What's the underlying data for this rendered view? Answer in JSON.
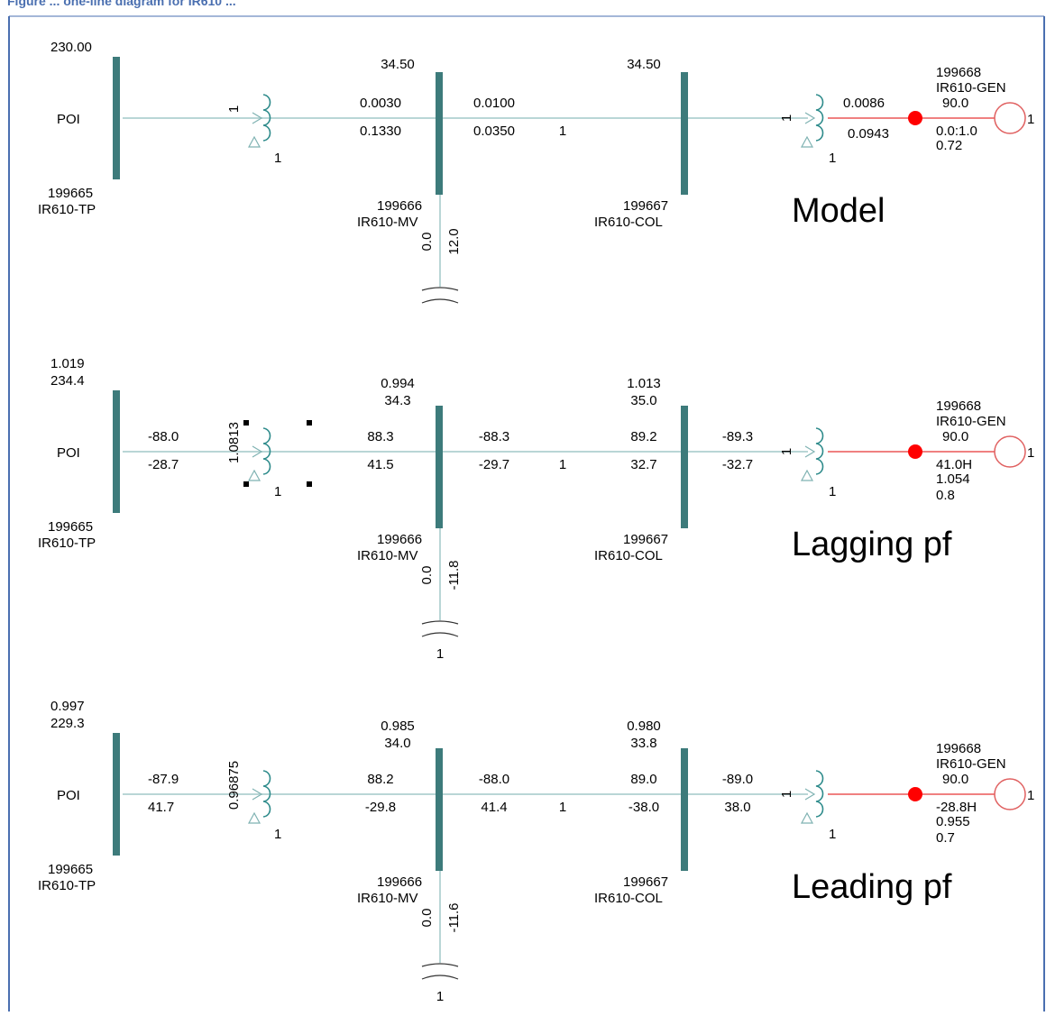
{
  "colors": {
    "bus": "#3d7b7b",
    "line": "#b9d6d6",
    "winding": "#2e8b8b",
    "delta": "#7fb2b2",
    "gen_line": "#f08080",
    "gen_dot": "#ff0000",
    "gen_circle": "#e06060",
    "text": "#000000",
    "border": "#4a6fb0"
  },
  "header_fragment": "Figure ... one-line diagram for IR610 ...",
  "panels": [
    {
      "id": "model",
      "title": "Model",
      "poi": {
        "v1": "",
        "v2": "230.00",
        "name": "POI",
        "num": "199665",
        "bus": "IR610-TP"
      },
      "xf1": {
        "label": "1",
        "label_rotated": true,
        "sec": "1"
      },
      "xf1_flow_left": {
        "top": "",
        "bot": ""
      },
      "xf1_flow_right": {
        "top": "0.0030",
        "bot": "0.1330"
      },
      "mv": {
        "v1": "",
        "v2": "34.50",
        "num": "199666",
        "bus": "IR610-MV"
      },
      "mv_flow": {
        "top": "0.0100",
        "bot": "0.0350"
      },
      "ckt": "1",
      "col": {
        "v1": "",
        "v2": "34.50",
        "num": "199667",
        "bus": "IR610-COL"
      },
      "col_flow_left": {
        "top": "",
        "bot": ""
      },
      "xf2": {
        "label": "1",
        "top": "0.0086",
        "bot": "0.0943",
        "sec": "1"
      },
      "gen": {
        "num": "199668",
        "name": "IR610-GEN",
        "p": "90.0",
        "q": "0.0:1.0",
        "v": "0.72",
        "extra": "",
        "id": "1"
      },
      "shunt": {
        "a": "0.0",
        "b": "12.0",
        "id": ""
      }
    },
    {
      "id": "lagging",
      "title": "Lagging pf",
      "poi": {
        "v1": "1.019",
        "v2": "234.4",
        "name": "POI",
        "num": "199665",
        "bus": "IR610-TP"
      },
      "xf1": {
        "label": "1.0813",
        "label_rotated": true,
        "sec": "1"
      },
      "xf1_flow_left": {
        "top": "-88.0",
        "bot": "-28.7"
      },
      "xf1_flow_right": {
        "top": "88.3",
        "bot": "41.5"
      },
      "mv": {
        "v1": "0.994",
        "v2": "34.3",
        "num": "199666",
        "bus": "IR610-MV"
      },
      "mv_flow": {
        "top": "-88.3",
        "bot": "-29.7"
      },
      "ckt": "1",
      "col": {
        "v1": "1.013",
        "v2": "35.0",
        "num": "199667",
        "bus": "IR610-COL"
      },
      "col_flow_left": {
        "top": "89.2",
        "bot": "32.7"
      },
      "xf2": {
        "label": "1",
        "top": "-89.3",
        "bot": "-32.7",
        "sec": "1"
      },
      "gen": {
        "num": "199668",
        "name": "IR610-GEN",
        "p": "90.0",
        "q": "41.0H",
        "v": "1.054",
        "extra": "0.8",
        "id": "1"
      },
      "shunt": {
        "a": "0.0",
        "b": "-11.8",
        "id": "1"
      }
    },
    {
      "id": "leading",
      "title": "Leading pf",
      "poi": {
        "v1": "0.997",
        "v2": "229.3",
        "name": "POI",
        "num": "199665",
        "bus": "IR610-TP"
      },
      "xf1": {
        "label": "0.96875",
        "label_rotated": true,
        "sec": "1"
      },
      "xf1_flow_left": {
        "top": "-87.9",
        "bot": "41.7"
      },
      "xf1_flow_right": {
        "top": "88.2",
        "bot": "-29.8"
      },
      "mv": {
        "v1": "0.985",
        "v2": "34.0",
        "num": "199666",
        "bus": "IR610-MV"
      },
      "mv_flow": {
        "top": "-88.0",
        "bot": "41.4"
      },
      "ckt": "1",
      "col": {
        "v1": "0.980",
        "v2": "33.8",
        "num": "199667",
        "bus": "IR610-COL"
      },
      "col_flow_left": {
        "top": "89.0",
        "bot": "-38.0"
      },
      "xf2": {
        "label": "1",
        "top": "-89.0",
        "bot": "38.0",
        "sec": "1"
      },
      "gen": {
        "num": "199668",
        "name": "IR610-GEN",
        "p": "90.0",
        "q": "-28.8H",
        "v": "0.955",
        "extra": "0.7",
        "id": "1"
      },
      "shunt": {
        "a": "0.0",
        "b": "-11.6",
        "id": "1"
      }
    }
  ]
}
